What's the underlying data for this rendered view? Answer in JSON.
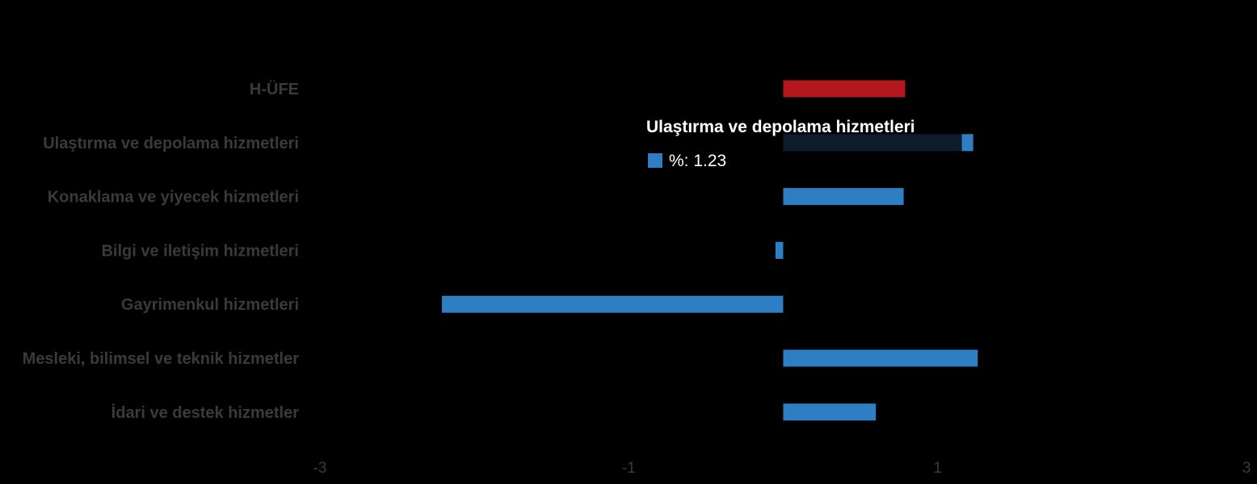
{
  "chart_data": {
    "type": "bar",
    "orientation": "horizontal",
    "categories": [
      "H-ÜFE",
      "Ulaştırma ve depolama hizmetleri",
      "Konaklama ve yiyecek hizmetleri",
      "Bilgi ve iletişim hizmetleri",
      "Gayrimenkul hizmetleri",
      "Mesleki, bilimsel ve teknik hizmetler",
      "İdari ve destek hizmetler"
    ],
    "values": [
      0.79,
      1.23,
      0.78,
      -0.05,
      -2.21,
      1.26,
      0.6
    ],
    "bar_colors": [
      "#b5171e",
      "#2e7ec3",
      "#2e7ec3",
      "#2e7ec3",
      "#2e7ec3",
      "#2e7ec3",
      "#2e7ec3"
    ],
    "xlim": [
      -3,
      3
    ],
    "xticks": [
      -3,
      -1,
      1,
      3
    ],
    "grid": false,
    "background": "#000000",
    "label_color": "#3a3a3a",
    "tooltip": {
      "title": "Ulaştırma ve depolama hizmetleri",
      "value_text": "%: 1.23",
      "marker_color": "#2e7ec3",
      "background": "#0d1b2a",
      "category_index": 1
    }
  }
}
